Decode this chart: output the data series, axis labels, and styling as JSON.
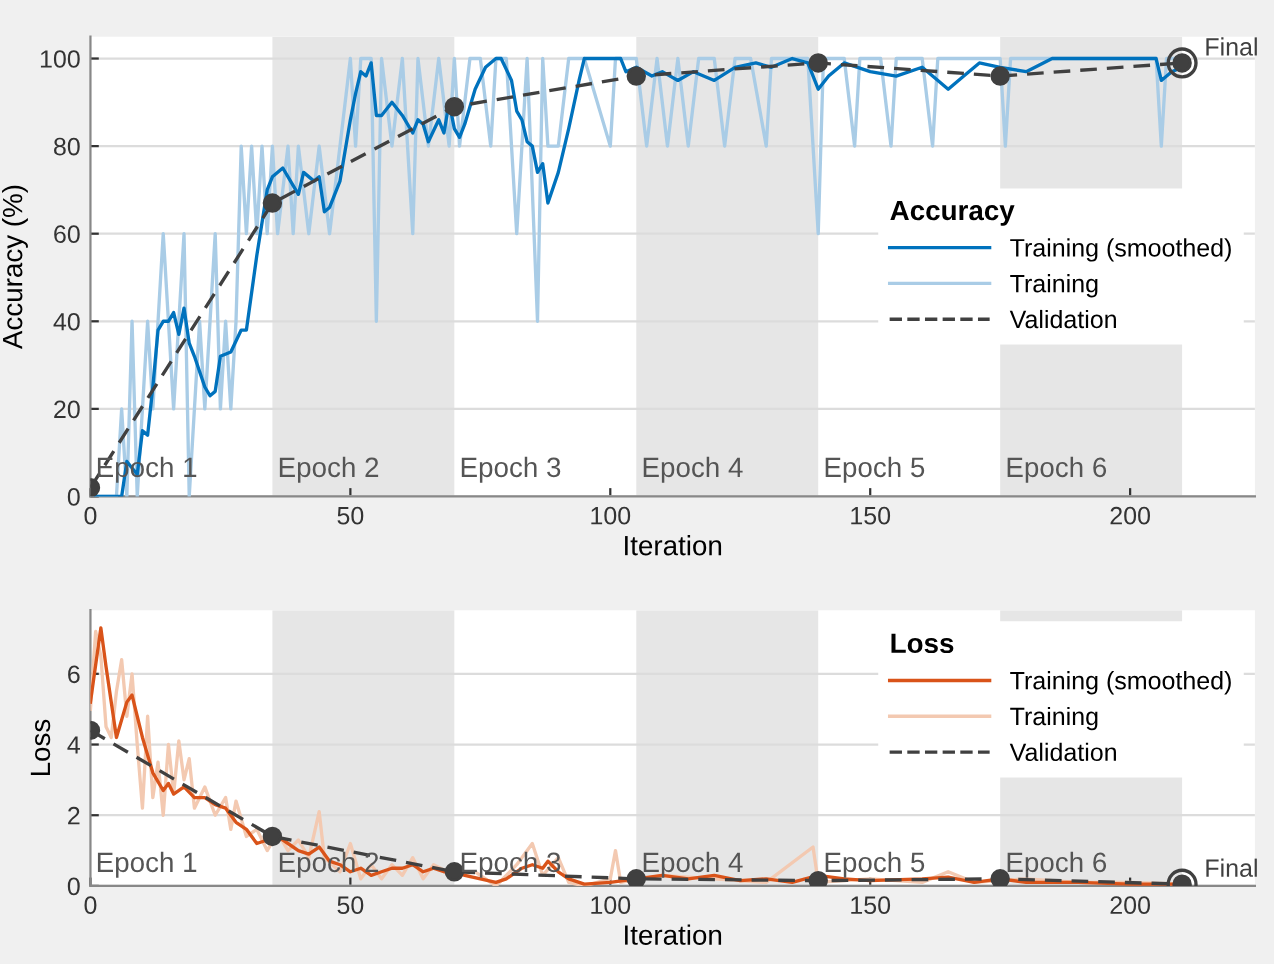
{
  "chart_data": [
    {
      "type": "line",
      "xlabel": "Iteration",
      "ylabel": "Accuracy (%)",
      "legend_title": "Accuracy",
      "legend": "right",
      "grid": "y",
      "xlim": [
        0,
        224
      ],
      "xticks": [
        0,
        50,
        100,
        150,
        200
      ],
      "ylim": [
        0,
        105
      ],
      "yticks": [
        0,
        20,
        40,
        60,
        80,
        100
      ],
      "bands": [
        {
          "axis": "x",
          "from": 35,
          "to": 70,
          "label": "Epoch 2",
          "color": "#e6e6e6"
        },
        {
          "axis": "x",
          "from": 105,
          "to": 140,
          "label": "Epoch 4",
          "color": "#e6e6e6"
        },
        {
          "axis": "x",
          "from": 175,
          "to": 210,
          "label": "Epoch 6",
          "color": "#e6e6e6"
        }
      ],
      "annotations": [
        {
          "text": "Final",
          "x": 210,
          "y": 99
        },
        "Epoch 1",
        "Epoch 3",
        "Epoch 5"
      ],
      "series": [
        {
          "name": "Training (smoothed)",
          "color": "#0072bd",
          "marker": "none",
          "line_style": "solid",
          "x": [
            1,
            6,
            7,
            9,
            10,
            11,
            12,
            13,
            14,
            15,
            16,
            17,
            18,
            19,
            20,
            22,
            23,
            24,
            25,
            27,
            29,
            30,
            32,
            34,
            35,
            37,
            39,
            40,
            41,
            43,
            44,
            45,
            46,
            48,
            50,
            51,
            52,
            53,
            54,
            55,
            56,
            58,
            60,
            62,
            63,
            64,
            65,
            67,
            68,
            69,
            70,
            71,
            72,
            74,
            76,
            78,
            79,
            81,
            82,
            83,
            84,
            85,
            86,
            87,
            88,
            90,
            92,
            94,
            95,
            100,
            102,
            103,
            105,
            108,
            110,
            113,
            116,
            120,
            124,
            128,
            131,
            135,
            138,
            140,
            142,
            145,
            150,
            155,
            160,
            162,
            165,
            168,
            171,
            175,
            180,
            185,
            205,
            206,
            208,
            210
          ],
          "values": [
            0,
            0,
            8,
            5,
            15,
            14,
            25,
            38,
            40,
            40,
            42,
            37,
            43,
            35,
            32,
            25,
            23,
            24,
            32,
            33,
            38,
            38,
            55,
            70,
            73,
            75,
            71,
            69,
            74,
            72,
            73,
            65,
            66,
            72,
            86,
            92,
            97,
            96,
            99,
            87,
            87,
            90,
            87,
            83,
            86,
            85,
            81,
            86,
            83,
            90,
            84,
            82,
            85,
            93,
            98,
            100,
            100,
            95,
            88,
            86,
            81,
            80,
            74,
            76,
            67,
            74,
            84,
            95,
            100,
            100,
            100,
            97,
            98,
            96,
            97,
            95,
            97,
            95,
            98,
            99,
            98,
            100,
            99,
            93,
            96,
            99,
            97,
            96,
            98,
            96,
            93,
            96,
            99,
            98,
            97,
            100,
            100,
            95,
            97,
            98
          ]
        },
        {
          "name": "Training",
          "color": "#a9cce6",
          "marker": "none",
          "line_style": "solid",
          "x": [
            0,
            1,
            5,
            6,
            7,
            8,
            9,
            10,
            11,
            12,
            13,
            14,
            15,
            16,
            17,
            18,
            19,
            20,
            21,
            22,
            23,
            24,
            25,
            26,
            27,
            28,
            29,
            30,
            31,
            32,
            33,
            34,
            35,
            36,
            38,
            39,
            40,
            42,
            44,
            46,
            48,
            50,
            51,
            52,
            54,
            55,
            56,
            58,
            60,
            62,
            63,
            65,
            67,
            69,
            70,
            71,
            73,
            75,
            77,
            78,
            80,
            82,
            84,
            86,
            87,
            88,
            90,
            92,
            95,
            100,
            101,
            105,
            107,
            109,
            111,
            113,
            115,
            117,
            120,
            122,
            124,
            127,
            130,
            131,
            138,
            140,
            141,
            145,
            147,
            148,
            152,
            154,
            155,
            160,
            162,
            163,
            170,
            175,
            176,
            177,
            205,
            206,
            207,
            210
          ],
          "values": [
            0,
            0,
            0,
            20,
            0,
            40,
            0,
            20,
            40,
            20,
            40,
            60,
            40,
            20,
            40,
            60,
            0,
            20,
            40,
            20,
            40,
            60,
            20,
            40,
            20,
            40,
            80,
            60,
            80,
            60,
            80,
            60,
            80,
            60,
            80,
            60,
            80,
            60,
            80,
            60,
            80,
            100,
            80,
            100,
            100,
            40,
            100,
            80,
            100,
            60,
            100,
            80,
            100,
            80,
            100,
            80,
            100,
            100,
            80,
            100,
            100,
            60,
            100,
            40,
            100,
            80,
            80,
            100,
            100,
            80,
            100,
            100,
            80,
            100,
            80,
            100,
            80,
            100,
            100,
            80,
            100,
            100,
            80,
            100,
            100,
            60,
            100,
            100,
            80,
            100,
            100,
            80,
            100,
            100,
            80,
            100,
            100,
            100,
            80,
            100,
            100,
            80,
            100,
            100
          ]
        },
        {
          "name": "Validation",
          "color": "#404040",
          "marker": "circle",
          "line_style": "dashed",
          "x": [
            0,
            35,
            70,
            105,
            140,
            175,
            210
          ],
          "values": [
            2,
            67,
            89,
            96,
            99,
            96,
            99
          ]
        }
      ]
    },
    {
      "type": "line",
      "xlabel": "Iteration",
      "ylabel": "Loss",
      "legend_title": "Loss",
      "legend": "top right",
      "grid": "y",
      "xlim": [
        0,
        224
      ],
      "xticks": [
        0,
        50,
        100,
        150,
        200
      ],
      "ylim": [
        0,
        7.8
      ],
      "yticks": [
        0,
        2,
        4,
        6
      ],
      "bands": [
        {
          "axis": "x",
          "from": 35,
          "to": 70,
          "label": "Epoch 2",
          "color": "#e6e6e6"
        },
        {
          "axis": "x",
          "from": 105,
          "to": 140,
          "label": "Epoch 4",
          "color": "#e6e6e6"
        },
        {
          "axis": "x",
          "from": 175,
          "to": 210,
          "label": "Epoch 6",
          "color": "#e6e6e6"
        }
      ],
      "annotations": [
        {
          "text": "Final",
          "x": 210,
          "y": 0.05
        },
        "Epoch 1",
        "Epoch 3",
        "Epoch 5"
      ],
      "series": [
        {
          "name": "Training (smoothed)",
          "color": "#d95319",
          "marker": "none",
          "line_style": "solid",
          "x": [
            0,
            2,
            3,
            5,
            7,
            8,
            9,
            10,
            12,
            14,
            15,
            16,
            18,
            20,
            22,
            24,
            26,
            28,
            30,
            32,
            34,
            36,
            38,
            40,
            42,
            44,
            46,
            48,
            50,
            52,
            54,
            56,
            58,
            60,
            62,
            64,
            66,
            68,
            70,
            72,
            75,
            78,
            80,
            83,
            85,
            87,
            88,
            90,
            92,
            95,
            100,
            105,
            110,
            115,
            120,
            125,
            130,
            135,
            140,
            145,
            150,
            160,
            165,
            170,
            175,
            180,
            190,
            200,
            210
          ],
          "values": [
            5.2,
            7.3,
            6.2,
            4.2,
            5.2,
            5.4,
            4.8,
            4.2,
            3.2,
            2.7,
            2.9,
            2.6,
            2.8,
            2.5,
            2.5,
            2.3,
            2.2,
            1.8,
            1.6,
            1.2,
            1.3,
            1.4,
            1.2,
            1.0,
            0.9,
            1.1,
            0.7,
            0.6,
            0.4,
            0.5,
            0.3,
            0.4,
            0.5,
            0.5,
            0.6,
            0.4,
            0.5,
            0.4,
            0.4,
            0.3,
            0.2,
            0.1,
            0.2,
            0.5,
            0.6,
            0.5,
            0.7,
            0.4,
            0.2,
            0.05,
            0.1,
            0.2,
            0.3,
            0.2,
            0.3,
            0.15,
            0.2,
            0.1,
            0.3,
            0.2,
            0.15,
            0.2,
            0.25,
            0.1,
            0.2,
            0.1,
            0.1,
            0.05,
            0.05
          ]
        },
        {
          "name": "Training",
          "color": "#f3c9b1",
          "marker": "none",
          "line_style": "solid",
          "x": [
            0,
            1,
            2,
            3,
            4,
            5,
            6,
            7,
            8,
            9,
            10,
            11,
            12,
            13,
            14,
            15,
            16,
            17,
            18,
            19,
            20,
            22,
            24,
            26,
            27,
            28,
            30,
            32,
            34,
            36,
            38,
            40,
            42,
            44,
            45,
            48,
            50,
            52,
            54,
            56,
            58,
            60,
            62,
            64,
            66,
            70,
            74,
            78,
            82,
            85,
            87,
            90,
            92,
            95,
            100,
            101,
            102,
            110,
            120,
            130,
            139,
            140,
            150,
            160,
            165,
            170,
            180,
            190,
            200,
            210
          ],
          "values": [
            5.0,
            7.2,
            6.5,
            4.5,
            4.2,
            5.5,
            6.4,
            4.8,
            6.0,
            4.0,
            2.2,
            4.8,
            2.5,
            3.5,
            2.0,
            4.0,
            2.6,
            4.1,
            3.0,
            3.6,
            2.2,
            2.8,
            2.0,
            2.5,
            1.6,
            2.4,
            1.4,
            1.6,
            1.0,
            1.5,
            1.0,
            1.3,
            0.8,
            2.1,
            0.8,
            0.4,
            1.2,
            0.2,
            0.6,
            0.2,
            0.6,
            0.3,
            0.8,
            0.2,
            0.6,
            0.3,
            0.4,
            0.0,
            0.6,
            1.2,
            0.3,
            0.8,
            0.1,
            0.0,
            0.2,
            1.0,
            0.1,
            0.3,
            0.2,
            0.1,
            1.1,
            0.1,
            0.2,
            0.1,
            0.4,
            0.1,
            0.2,
            0.1,
            0.1,
            0.05
          ]
        },
        {
          "name": "Validation",
          "color": "#404040",
          "marker": "circle",
          "line_style": "dashed",
          "x": [
            0,
            35,
            70,
            105,
            140,
            175,
            210
          ],
          "values": [
            4.4,
            1.4,
            0.4,
            0.2,
            0.15,
            0.2,
            0.05
          ]
        }
      ]
    }
  ]
}
